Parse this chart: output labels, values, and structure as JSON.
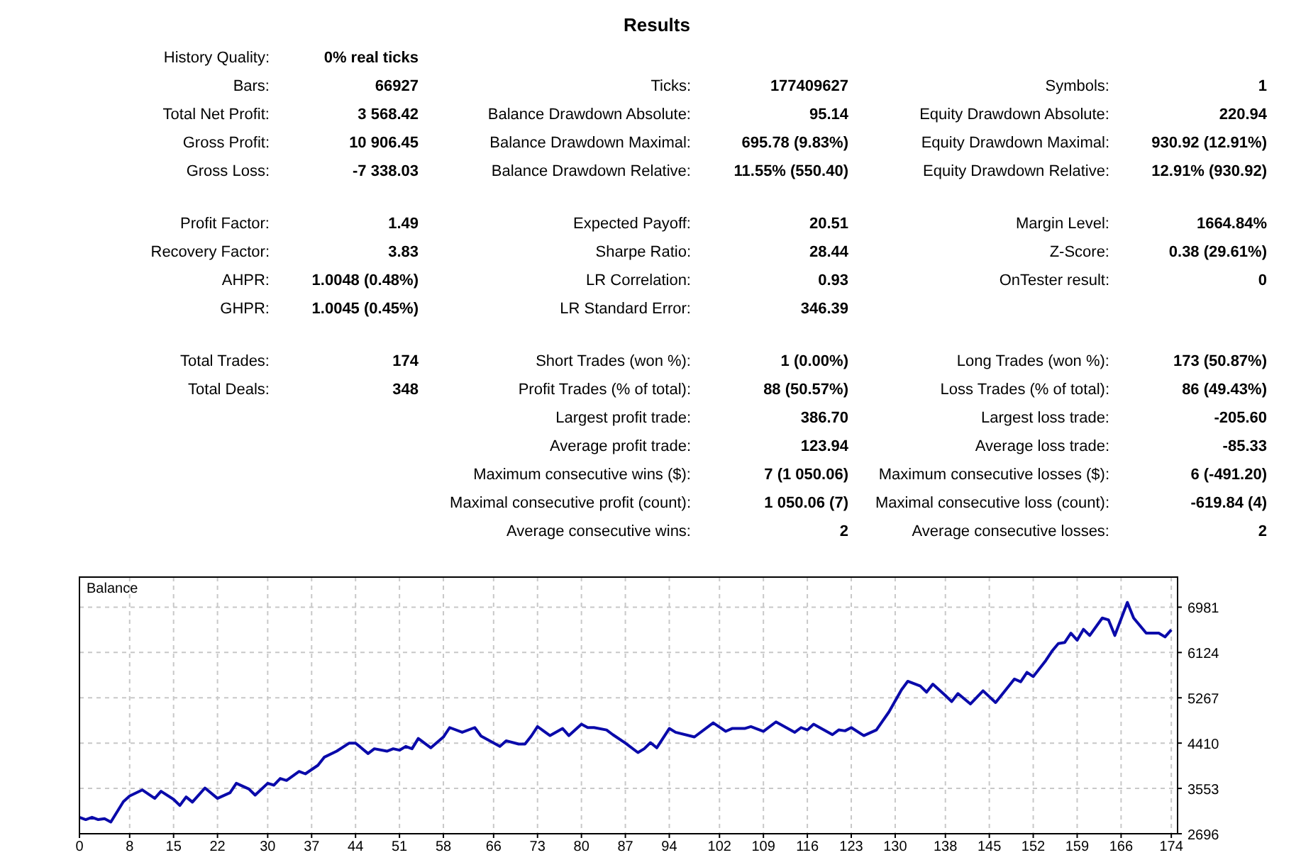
{
  "chart_data": [
    {
      "type": "other",
      "title": "Results",
      "annotations": [
        "History Quality:",
        "0% real ticks",
        "Bars:",
        "66927",
        "Ticks:",
        "177409627",
        "Symbols:",
        "1",
        "Total Net Profit:",
        "3 568.42",
        "Balance Drawdown Absolute:",
        "95.14",
        "Equity Drawdown Absolute:",
        "220.94",
        "Gross Profit:",
        "10 906.45",
        "Balance Drawdown Maximal:",
        "695.78 (9.83%)",
        "Equity Drawdown Maximal:",
        "930.92 (12.91%)",
        "Gross Loss:",
        "-7 338.03",
        "Balance Drawdown Relative:",
        "11.55% (550.40)",
        "Equity Drawdown Relative:",
        "12.91% (930.92)",
        "Profit Factor:",
        "1.49",
        "Expected Payoff:",
        "20.51",
        "Margin Level:",
        "1664.84%",
        "Recovery Factor:",
        "3.83",
        "Sharpe Ratio:",
        "28.44",
        "Z-Score:",
        "0.38 (29.61%)",
        "AHPR:",
        "1.0048 (0.48%)",
        "LR Correlation:",
        "0.93",
        "OnTester result:",
        "0",
        "GHPR:",
        "1.0045 (0.45%)",
        "LR Standard Error:",
        "346.39",
        "Total Trades:",
        "174",
        "Short Trades (won %):",
        "1 (0.00%)",
        "Long Trades (won %):",
        "173 (50.87%)",
        "Total Deals:",
        "348",
        "Profit Trades (% of total):",
        "88 (50.57%)",
        "Loss Trades (% of total):",
        "86 (49.43%)",
        "Largest profit trade:",
        "386.70",
        "Largest loss trade:",
        "-205.60",
        "Average profit trade:",
        "123.94",
        "Average loss trade:",
        "-85.33",
        "Maximum consecutive wins ($):",
        "7 (1 050.06)",
        "Maximum consecutive losses ($):",
        "6 (-491.20)",
        "Maximal consecutive profit (count):",
        "1 050.06 (7)",
        "Maximal consecutive loss (count):",
        "-619.84 (4)",
        "Average consecutive wins:",
        "2",
        "Average consecutive losses:",
        "2"
      ]
    },
    {
      "type": "line",
      "xlim": [
        0,
        175
      ],
      "xticks": [
        0,
        8,
        15,
        22,
        30,
        37,
        44,
        51,
        58,
        66,
        73,
        80,
        87,
        94,
        102,
        109,
        116,
        123,
        130,
        138,
        145,
        152,
        159,
        166,
        174
      ],
      "ylim": [
        2696,
        7550
      ],
      "yticks": [
        2696,
        3553,
        4410,
        5267,
        6124,
        6981
      ],
      "grid": true,
      "legend": "top left",
      "series": [
        {
          "name": "Balance",
          "color": "#0a0aaa",
          "x": [
            0,
            1,
            2,
            3,
            4,
            5,
            7,
            8,
            10,
            12,
            13,
            15,
            16,
            17,
            18,
            20,
            22,
            24,
            25,
            27,
            28,
            30,
            31,
            32,
            33,
            35,
            36,
            38,
            39,
            41,
            43,
            44,
            46,
            47,
            49,
            50,
            51,
            52,
            53,
            54,
            56,
            58,
            59,
            61,
            63,
            64,
            67,
            68,
            70,
            71,
            72,
            73,
            75,
            77,
            78,
            80,
            81,
            82,
            84,
            85,
            87,
            89,
            90,
            91,
            92,
            94,
            95,
            98,
            101,
            103,
            104,
            106,
            107,
            109,
            111,
            114,
            115,
            116,
            117,
            120,
            121,
            122,
            123,
            125,
            127,
            129,
            131,
            132,
            134,
            135,
            136,
            138,
            139,
            140,
            142,
            144,
            146,
            149,
            150,
            151,
            152,
            154,
            155,
            156,
            157,
            158,
            159,
            160,
            161,
            163,
            164,
            165,
            167,
            168,
            170,
            172,
            173,
            174
          ],
          "values": [
            3007,
            2963,
            3007,
            2963,
            2981,
            2918,
            3302,
            3409,
            3525,
            3365,
            3499,
            3347,
            3231,
            3392,
            3294,
            3561,
            3365,
            3472,
            3650,
            3543,
            3427,
            3650,
            3615,
            3740,
            3704,
            3874,
            3829,
            3990,
            4142,
            4258,
            4410,
            4410,
            4213,
            4303,
            4258,
            4303,
            4276,
            4347,
            4303,
            4498,
            4321,
            4526,
            4704,
            4615,
            4704,
            4543,
            4347,
            4454,
            4392,
            4392,
            4543,
            4722,
            4552,
            4686,
            4552,
            4767,
            4704,
            4704,
            4659,
            4570,
            4410,
            4231,
            4303,
            4419,
            4321,
            4686,
            4615,
            4526,
            4794,
            4633,
            4686,
            4686,
            4722,
            4633,
            4811,
            4615,
            4704,
            4659,
            4767,
            4570,
            4659,
            4642,
            4704,
            4552,
            4659,
            4999,
            5418,
            5579,
            5490,
            5374,
            5525,
            5311,
            5195,
            5347,
            5150,
            5400,
            5177,
            5623,
            5570,
            5748,
            5668,
            5972,
            6151,
            6294,
            6312,
            6490,
            6356,
            6562,
            6446,
            6776,
            6740,
            6446,
            7071,
            6776,
            6490,
            6490,
            6419,
            6552
          ]
        }
      ]
    }
  ]
}
